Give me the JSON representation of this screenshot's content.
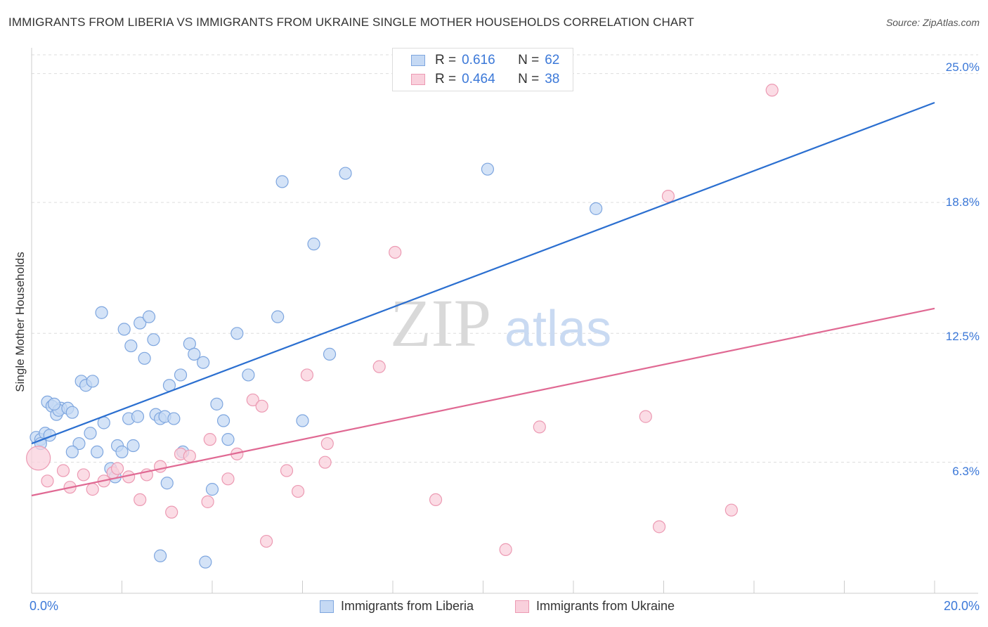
{
  "header": {
    "title": "IMMIGRANTS FROM LIBERIA VS IMMIGRANTS FROM UKRAINE SINGLE MOTHER HOUSEHOLDS CORRELATION CHART",
    "source": "Source: ZipAtlas.com"
  },
  "watermark": {
    "zip": "ZIP",
    "atlas": "atlas"
  },
  "legend_top": {
    "rows": [
      {
        "r_key": "R = ",
        "r_value": "0.616",
        "n_key": "N = ",
        "n_value": "62"
      },
      {
        "r_key": "R = ",
        "r_value": "0.464",
        "n_key": "N = ",
        "n_value": "38"
      }
    ]
  },
  "colors": {
    "liberia_fill": "#c5d9f4",
    "liberia_stroke": "#7ea6df",
    "liberia_line": "#2b6fd0",
    "ukraine_fill": "#f9d0dc",
    "ukraine_stroke": "#ec9ab3",
    "ukraine_line": "#e06993",
    "tick_text": "#3b78d8",
    "grid": "#dddddd"
  },
  "chart_data": {
    "type": "scatter",
    "title": "IMMIGRANTS FROM LIBERIA VS IMMIGRANTS FROM UKRAINE SINGLE MOTHER HOUSEHOLDS CORRELATION CHART",
    "xlabel": "",
    "ylabel": "Single Mother Households",
    "xlim": [
      0,
      20
    ],
    "ylim": [
      0,
      25.9
    ],
    "x_tick_labels": [
      "0.0%",
      "20.0%"
    ],
    "y_ticks": [
      6.3,
      12.5,
      18.8,
      25.0
    ],
    "y_tick_labels": [
      "6.3%",
      "12.5%",
      "18.8%",
      "25.0%"
    ],
    "grid": true,
    "legend_position": "bottom",
    "series": [
      {
        "name": "Immigrants from Liberia",
        "r": 0.616,
        "n": 62,
        "trend": [
          [
            0,
            7.2
          ],
          [
            20,
            23.6
          ]
        ],
        "points": [
          [
            0.1,
            7.5
          ],
          [
            0.2,
            7.4
          ],
          [
            0.3,
            7.7
          ],
          [
            0.4,
            7.6
          ],
          [
            0.2,
            7.2
          ],
          [
            0.35,
            9.2
          ],
          [
            0.45,
            9.0
          ],
          [
            0.55,
            8.6
          ],
          [
            0.65,
            8.9
          ],
          [
            0.6,
            8.8
          ],
          [
            0.5,
            9.1
          ],
          [
            0.8,
            8.9
          ],
          [
            0.9,
            8.7
          ],
          [
            1.1,
            10.2
          ],
          [
            1.2,
            10.0
          ],
          [
            1.35,
            10.2
          ],
          [
            1.3,
            7.7
          ],
          [
            1.05,
            7.2
          ],
          [
            0.9,
            6.8
          ],
          [
            1.45,
            6.8
          ],
          [
            1.6,
            8.2
          ],
          [
            1.55,
            13.5
          ],
          [
            1.75,
            6.0
          ],
          [
            1.85,
            5.6
          ],
          [
            1.9,
            7.1
          ],
          [
            2.0,
            6.8
          ],
          [
            2.05,
            12.7
          ],
          [
            2.15,
            8.4
          ],
          [
            2.2,
            11.9
          ],
          [
            2.25,
            7.1
          ],
          [
            2.35,
            8.5
          ],
          [
            2.4,
            13.0
          ],
          [
            2.5,
            11.3
          ],
          [
            2.6,
            13.3
          ],
          [
            2.7,
            12.2
          ],
          [
            2.75,
            8.6
          ],
          [
            2.85,
            8.4
          ],
          [
            2.95,
            8.5
          ],
          [
            3.0,
            5.3
          ],
          [
            3.05,
            10.0
          ],
          [
            3.15,
            8.4
          ],
          [
            3.3,
            10.5
          ],
          [
            3.35,
            6.8
          ],
          [
            3.5,
            12.0
          ],
          [
            3.6,
            11.5
          ],
          [
            3.8,
            11.1
          ],
          [
            4.1,
            9.1
          ],
          [
            4.25,
            8.3
          ],
          [
            4.35,
            7.4
          ],
          [
            4.55,
            12.5
          ],
          [
            4.8,
            10.5
          ],
          [
            5.45,
            13.3
          ],
          [
            5.55,
            19.8
          ],
          [
            6.0,
            8.3
          ],
          [
            6.25,
            16.8
          ],
          [
            6.6,
            11.5
          ],
          [
            6.95,
            20.2
          ],
          [
            2.85,
            1.8
          ],
          [
            3.85,
            1.5
          ],
          [
            4.0,
            5.0
          ],
          [
            10.1,
            20.4
          ],
          [
            12.5,
            18.5
          ]
        ]
      },
      {
        "name": "Immigrants from Ukraine",
        "r": 0.464,
        "n": 38,
        "trend": [
          [
            0,
            4.7
          ],
          [
            20,
            13.7
          ]
        ],
        "points": [
          [
            0.15,
            6.5
          ],
          [
            0.35,
            5.4
          ],
          [
            0.7,
            5.9
          ],
          [
            0.85,
            5.1
          ],
          [
            1.15,
            5.7
          ],
          [
            1.35,
            5.0
          ],
          [
            1.6,
            5.4
          ],
          [
            1.8,
            5.8
          ],
          [
            1.9,
            6.0
          ],
          [
            2.15,
            5.6
          ],
          [
            2.4,
            4.5
          ],
          [
            2.55,
            5.7
          ],
          [
            2.85,
            6.1
          ],
          [
            3.1,
            3.9
          ],
          [
            3.3,
            6.7
          ],
          [
            3.5,
            6.6
          ],
          [
            3.9,
            4.4
          ],
          [
            3.95,
            7.4
          ],
          [
            4.35,
            5.5
          ],
          [
            4.55,
            6.7
          ],
          [
            4.9,
            9.3
          ],
          [
            5.1,
            9.0
          ],
          [
            5.2,
            2.5
          ],
          [
            5.65,
            5.9
          ],
          [
            5.9,
            4.9
          ],
          [
            6.1,
            10.5
          ],
          [
            6.5,
            6.3
          ],
          [
            6.55,
            7.2
          ],
          [
            7.7,
            10.9
          ],
          [
            8.05,
            16.4
          ],
          [
            8.95,
            4.5
          ],
          [
            10.5,
            2.1
          ],
          [
            11.25,
            8.0
          ],
          [
            13.6,
            8.5
          ],
          [
            13.9,
            3.2
          ],
          [
            14.1,
            19.1
          ],
          [
            15.5,
            4.0
          ],
          [
            16.4,
            24.2
          ]
        ]
      }
    ]
  }
}
